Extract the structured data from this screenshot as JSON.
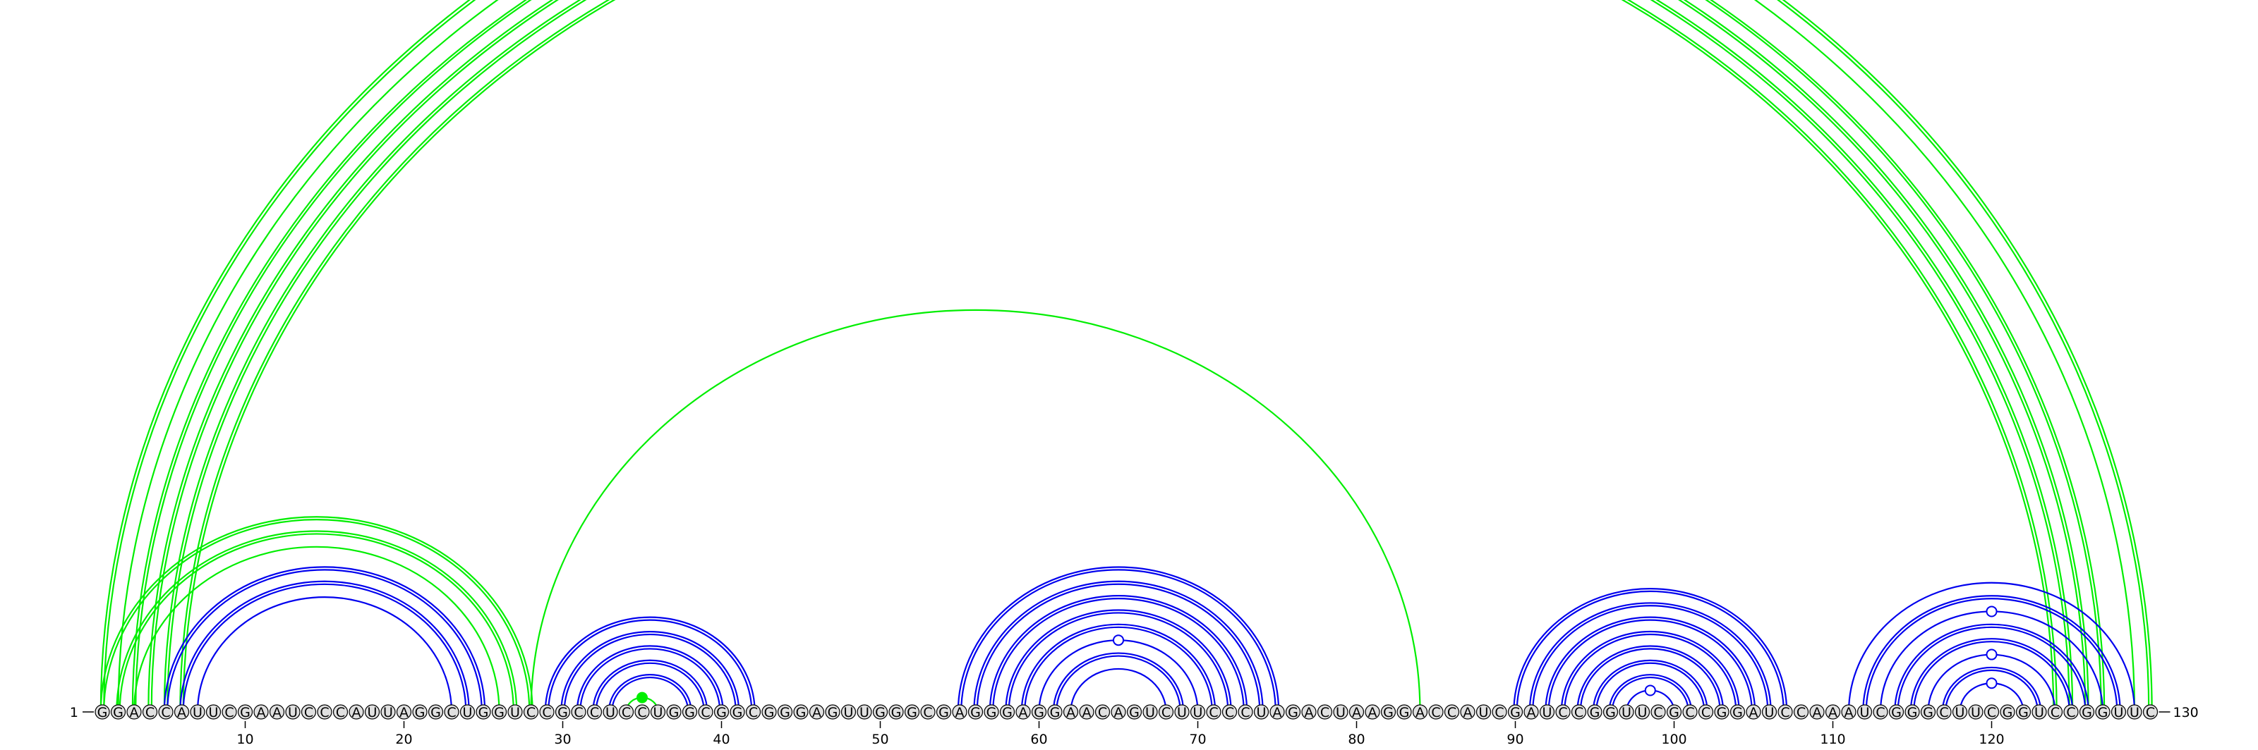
{
  "sequence": "GGACCAUUCGAAUCCCAUUAGGCUGGUCCGCCUCCUGGCGGCGGGAGUUGGGCGAGGGAGGAACAGUCUUCCCUAGACUAAGGACCAUCGAUCCGGUUCGCCGGAUCCAAAUCGGGCUUCGGUCCGGUUC",
  "start_label": "1",
  "end_label": "130",
  "ticks": [
    {
      "pos": 10,
      "label": "10"
    },
    {
      "pos": 20,
      "label": "20"
    },
    {
      "pos": 30,
      "label": "30"
    },
    {
      "pos": 40,
      "label": "40"
    },
    {
      "pos": 50,
      "label": "50"
    },
    {
      "pos": 60,
      "label": "60"
    },
    {
      "pos": 70,
      "label": "70"
    },
    {
      "pos": 80,
      "label": "80"
    },
    {
      "pos": 90,
      "label": "90"
    },
    {
      "pos": 100,
      "label": "100"
    },
    {
      "pos": 110,
      "label": "110"
    },
    {
      "pos": 120,
      "label": "120"
    }
  ],
  "colors": {
    "blue_arc": "#0000ee",
    "green_arc": "#00ee00",
    "nucleotide_fill": "#e0e0e0",
    "nucleotide_stroke": "#000000"
  },
  "arcs": [
    {
      "i": 1,
      "j": 130,
      "color": "green",
      "pairs": 2
    },
    {
      "i": 2,
      "j": 129,
      "color": "green",
      "pairs": 1,
      "marker": "open"
    },
    {
      "i": 3,
      "j": 127,
      "color": "green",
      "pairs": 2
    },
    {
      "i": 4,
      "j": 126,
      "color": "green",
      "pairs": 2
    },
    {
      "i": 5,
      "j": 125,
      "color": "green",
      "pairs": 2
    },
    {
      "i": 6,
      "j": 124,
      "color": "green",
      "pairs": 2
    },
    {
      "i": 1,
      "j": 28,
      "color": "green",
      "pairs": 2
    },
    {
      "i": 2,
      "j": 27,
      "color": "green",
      "pairs": 2
    },
    {
      "i": 3,
      "j": 26,
      "color": "green",
      "pairs": 1
    },
    {
      "i": 5,
      "j": 25,
      "color": "blue",
      "pairs": 2
    },
    {
      "i": 6,
      "j": 24,
      "color": "blue",
      "pairs": 2
    },
    {
      "i": 7,
      "j": 23,
      "color": "blue",
      "pairs": 1
    },
    {
      "i": 28,
      "j": 84,
      "color": "green",
      "pairs": 1
    },
    {
      "i": 29,
      "j": 42,
      "color": "blue",
      "pairs": 2
    },
    {
      "i": 30,
      "j": 41,
      "color": "blue",
      "pairs": 2
    },
    {
      "i": 31,
      "j": 40,
      "color": "blue",
      "pairs": 2
    },
    {
      "i": 32,
      "j": 39,
      "color": "blue",
      "pairs": 2
    },
    {
      "i": 33,
      "j": 38,
      "color": "blue",
      "pairs": 2
    },
    {
      "i": 34,
      "j": 36,
      "color": "green",
      "pairs": 1,
      "marker": "filled"
    },
    {
      "i": 55,
      "j": 75,
      "color": "blue",
      "pairs": 2
    },
    {
      "i": 56,
      "j": 74,
      "color": "blue",
      "pairs": 2
    },
    {
      "i": 57,
      "j": 73,
      "color": "blue",
      "pairs": 2
    },
    {
      "i": 58,
      "j": 72,
      "color": "blue",
      "pairs": 2
    },
    {
      "i": 59,
      "j": 71,
      "color": "blue",
      "pairs": 2
    },
    {
      "i": 60,
      "j": 70,
      "color": "blue",
      "pairs": 1,
      "marker": "open"
    },
    {
      "i": 61,
      "j": 69,
      "color": "blue",
      "pairs": 2
    },
    {
      "i": 62,
      "j": 68,
      "color": "blue",
      "pairs": 1
    },
    {
      "i": 90,
      "j": 107,
      "color": "blue",
      "pairs": 2
    },
    {
      "i": 91,
      "j": 106,
      "color": "blue",
      "pairs": 2
    },
    {
      "i": 92,
      "j": 105,
      "color": "blue",
      "pairs": 2
    },
    {
      "i": 93,
      "j": 104,
      "color": "blue",
      "pairs": 2
    },
    {
      "i": 94,
      "j": 103,
      "color": "blue",
      "pairs": 2
    },
    {
      "i": 95,
      "j": 102,
      "color": "blue",
      "pairs": 2
    },
    {
      "i": 96,
      "j": 101,
      "color": "blue",
      "pairs": 2
    },
    {
      "i": 97,
      "j": 100,
      "color": "blue",
      "pairs": 1,
      "marker": "open"
    },
    {
      "i": 111,
      "j": 129,
      "color": "blue",
      "pairs": 1
    },
    {
      "i": 112,
      "j": 128,
      "color": "blue",
      "pairs": 2
    },
    {
      "i": 113,
      "j": 127,
      "color": "blue",
      "pairs": 1,
      "marker": "open"
    },
    {
      "i": 114,
      "j": 126,
      "color": "blue",
      "pairs": 2
    },
    {
      "i": 115,
      "j": 125,
      "color": "blue",
      "pairs": 2
    },
    {
      "i": 116,
      "j": 124,
      "color": "blue",
      "pairs": 1,
      "marker": "open"
    },
    {
      "i": 117,
      "j": 123,
      "color": "blue",
      "pairs": 2
    },
    {
      "i": 118,
      "j": 122,
      "color": "blue",
      "pairs": 1,
      "marker": "open"
    }
  ]
}
